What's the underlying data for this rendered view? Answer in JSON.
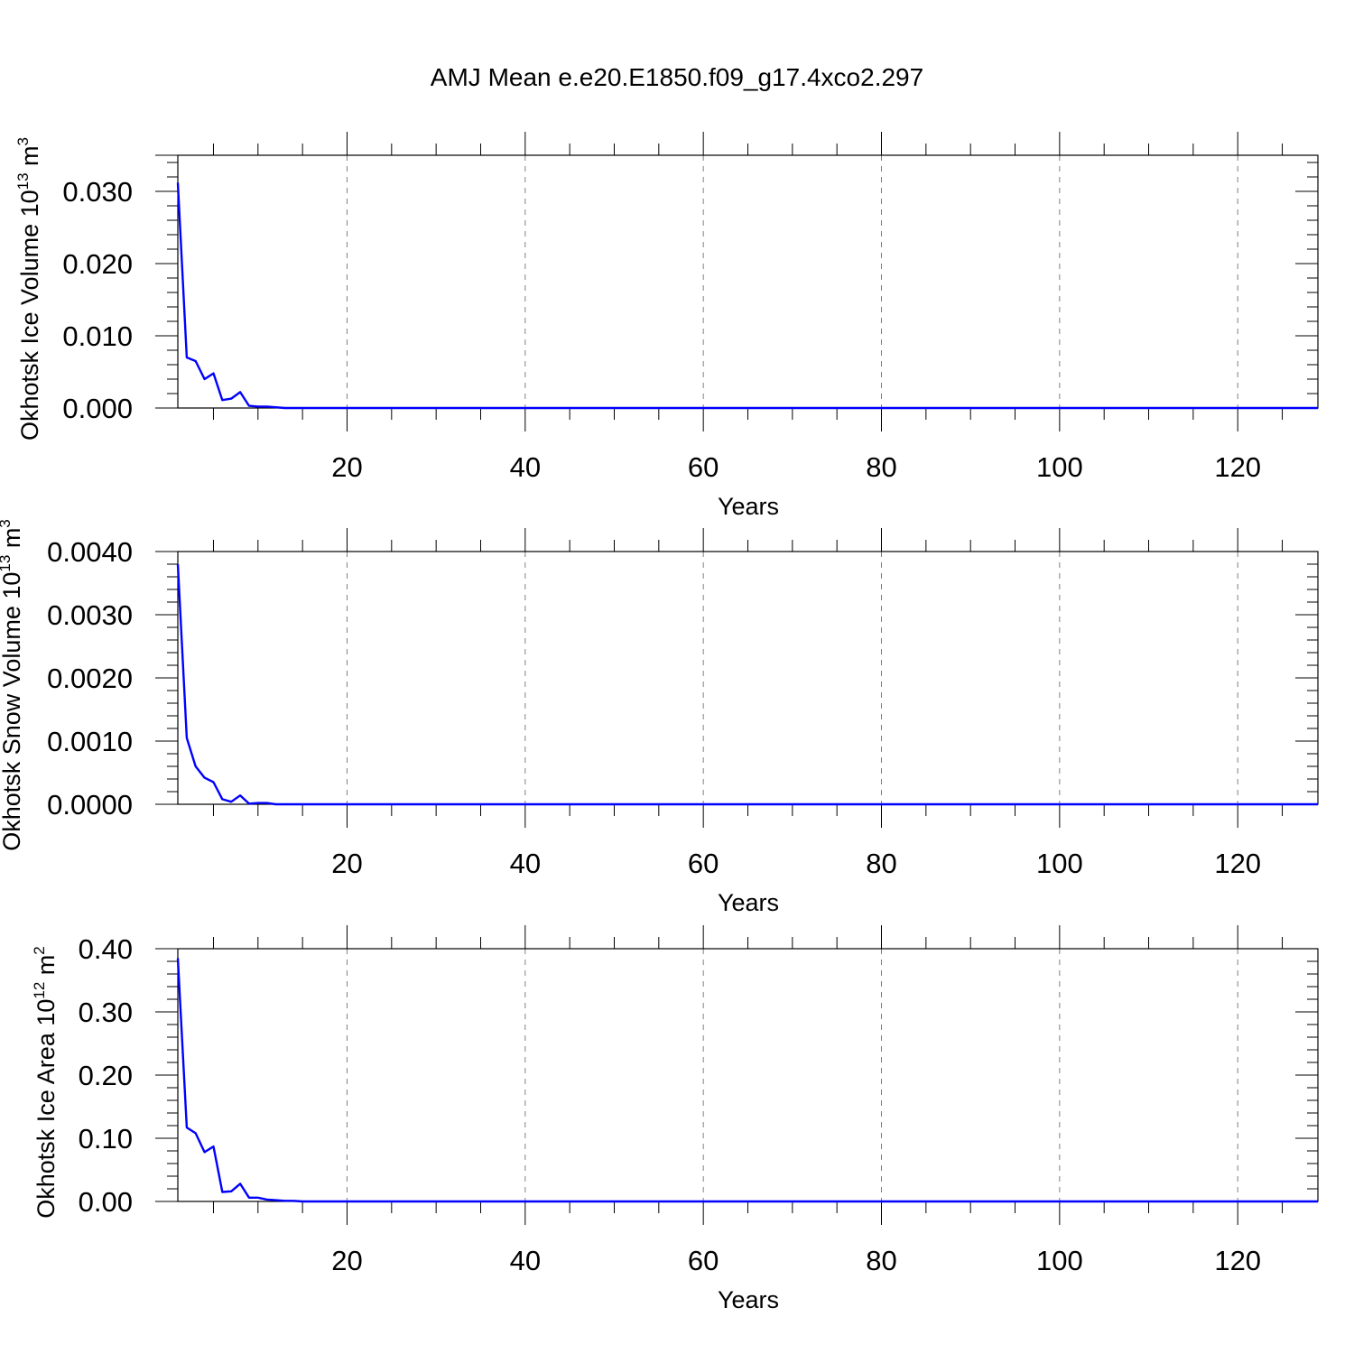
{
  "title": "AMJ Mean e.e20.E1850.f09_g17.4xco2.297",
  "colors": {
    "line": "#0000ff",
    "grid": "#808080"
  },
  "chart_data": [
    {
      "type": "line",
      "xlabel": "Years",
      "ylabel_main": "Okhotsk Ice Volume 10",
      "ylabel_sup": "13",
      "ylabel_unit": " m",
      "ylabel_unit_sup": "3",
      "xlim": [
        1,
        129
      ],
      "ylim": [
        0,
        0.035
      ],
      "xticks": [
        "20",
        "40",
        "60",
        "80",
        "100",
        "120"
      ],
      "xtick_values": [
        20,
        40,
        60,
        80,
        100,
        120
      ],
      "yticks": [
        "0.000",
        "0.010",
        "0.020",
        "0.030"
      ],
      "ytick_values": [
        0,
        0.01,
        0.02,
        0.03
      ],
      "grid": "vertical dashed",
      "x": [
        1,
        2,
        3,
        4,
        5,
        6,
        7,
        8,
        9,
        10,
        11,
        12,
        13,
        14,
        15,
        16,
        17,
        18,
        19,
        20,
        129
      ],
      "values": [
        0.0312,
        0.007,
        0.0065,
        0.004,
        0.0048,
        0.0011,
        0.0013,
        0.0022,
        0.0003,
        0.0002,
        0.0002,
        0.0001,
        0.0,
        0.0,
        0.0,
        0.0,
        0.0,
        0.0,
        0.0,
        0.0,
        0.0
      ]
    },
    {
      "type": "line",
      "xlabel": "Years",
      "ylabel_main": "Okhotsk Snow Volume 10",
      "ylabel_sup": "13",
      "ylabel_unit": " m",
      "ylabel_unit_sup": "3",
      "xlim": [
        1,
        129
      ],
      "ylim": [
        0,
        0.004
      ],
      "xticks": [
        "20",
        "40",
        "60",
        "80",
        "100",
        "120"
      ],
      "xtick_values": [
        20,
        40,
        60,
        80,
        100,
        120
      ],
      "yticks": [
        "0.0000",
        "0.0010",
        "0.0020",
        "0.0030",
        "0.0040"
      ],
      "ytick_values": [
        0,
        0.001,
        0.002,
        0.003,
        0.004
      ],
      "grid": "vertical dashed",
      "x": [
        1,
        2,
        3,
        4,
        5,
        6,
        7,
        8,
        9,
        10,
        11,
        12,
        13,
        14,
        15,
        16,
        17,
        18,
        19,
        20,
        129
      ],
      "values": [
        0.0038,
        0.00105,
        0.0006,
        0.00042,
        0.00035,
        8e-05,
        4e-05,
        0.00014,
        1e-05,
        2e-05,
        2e-05,
        0.0,
        0.0,
        0.0,
        0.0,
        0.0,
        0.0,
        0.0,
        0.0,
        0.0,
        0.0
      ]
    },
    {
      "type": "line",
      "xlabel": "Years",
      "ylabel_main": "Okhotsk Ice Area 10",
      "ylabel_sup": "12",
      "ylabel_unit": " m",
      "ylabel_unit_sup": "2",
      "xlim": [
        1,
        129
      ],
      "ylim": [
        0,
        0.4
      ],
      "xticks": [
        "20",
        "40",
        "60",
        "80",
        "100",
        "120"
      ],
      "xtick_values": [
        20,
        40,
        60,
        80,
        100,
        120
      ],
      "yticks": [
        "0.00",
        "0.10",
        "0.20",
        "0.30",
        "0.40"
      ],
      "ytick_values": [
        0,
        0.1,
        0.2,
        0.3,
        0.4
      ],
      "grid": "vertical dashed",
      "x": [
        1,
        2,
        3,
        4,
        5,
        6,
        7,
        8,
        9,
        10,
        11,
        12,
        13,
        14,
        15,
        16,
        17,
        18,
        19,
        20,
        129
      ],
      "values": [
        0.385,
        0.117,
        0.108,
        0.078,
        0.087,
        0.015,
        0.016,
        0.028,
        0.006,
        0.006,
        0.003,
        0.002,
        0.001,
        0.001,
        0.0,
        0.0,
        0.0,
        0.0,
        0.0,
        0.0,
        0.0
      ]
    }
  ]
}
